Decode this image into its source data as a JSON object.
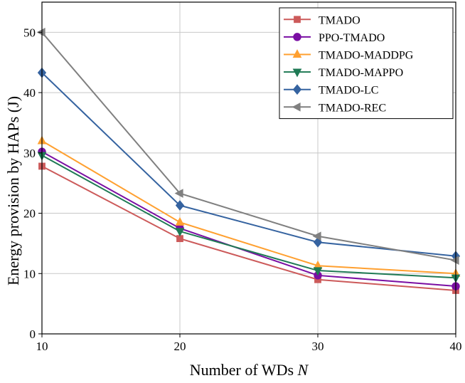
{
  "chart_data": {
    "type": "line",
    "xlabel": "Number of WDs",
    "xlabel_var": "N",
    "ylabel": "Energy provision by HAPs (J)",
    "x": [
      10,
      20,
      30,
      40
    ],
    "xlim": [
      10,
      40
    ],
    "ylim": [
      0,
      55
    ],
    "xticks": [
      "10",
      "20",
      "30",
      "40"
    ],
    "yticks": [
      "0",
      "10",
      "20",
      "30",
      "40",
      "50"
    ],
    "grid": true,
    "legend_position": "top-right",
    "series": [
      {
        "name": "TMADO",
        "color": "#cc5a5a",
        "marker": "square",
        "values": [
          27.8,
          15.8,
          9.0,
          7.2
        ]
      },
      {
        "name": "PPO-TMADO",
        "color": "#7a0ea3",
        "marker": "circle",
        "values": [
          30.2,
          17.5,
          9.7,
          7.9
        ]
      },
      {
        "name": "TMADO-MADDPG",
        "color": "#ffa030",
        "marker": "triangle-up",
        "values": [
          32.0,
          18.5,
          11.3,
          10.0
        ]
      },
      {
        "name": "TMADO-MAPPO",
        "color": "#1f7a55",
        "marker": "triangle-down",
        "values": [
          29.6,
          17.0,
          10.5,
          9.3
        ]
      },
      {
        "name": "TMADO-LC",
        "color": "#3563a0",
        "marker": "diamond",
        "values": [
          43.3,
          21.3,
          15.2,
          12.9
        ]
      },
      {
        "name": "TMADO-REC",
        "color": "#808080",
        "marker": "triangle-left",
        "values": [
          50.0,
          23.3,
          16.2,
          12.2
        ]
      }
    ]
  }
}
